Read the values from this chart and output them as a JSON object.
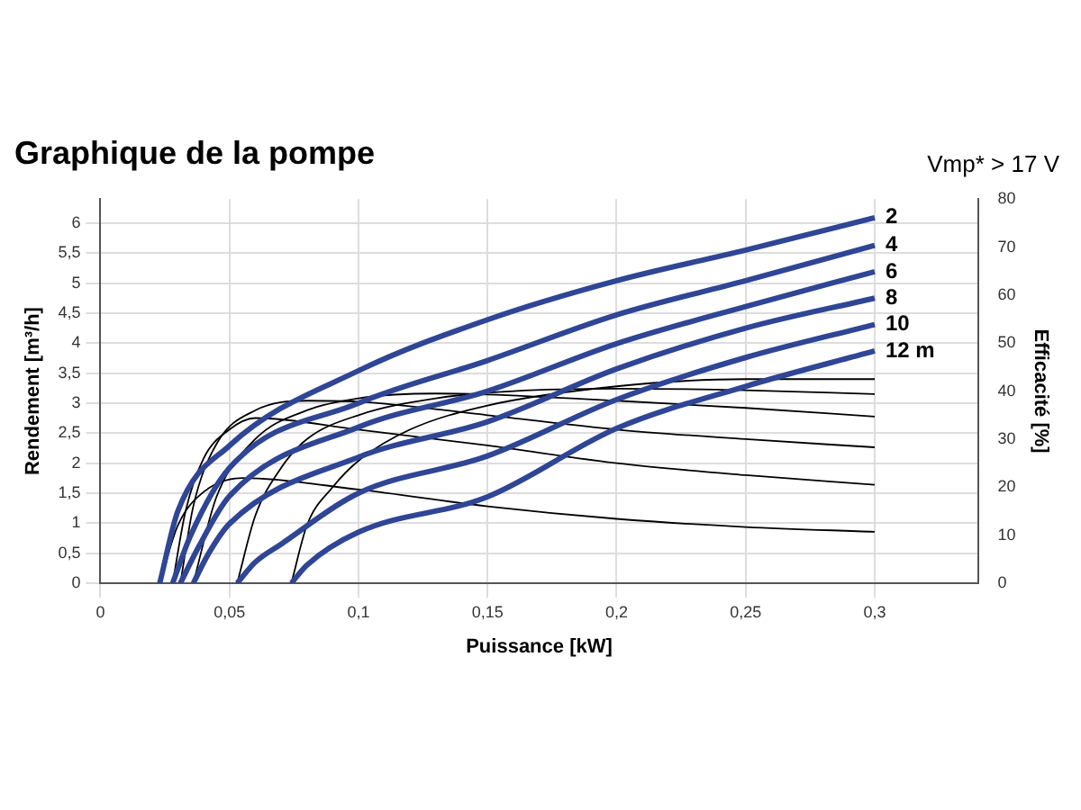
{
  "chart_data": {
    "type": "line",
    "title": "Graphique de la pompe",
    "xlabel": "Puissance [kW]",
    "ylabel": "Rendement [m³/h]",
    "y2label": "Efficacité [%]",
    "annotations": [
      "Vmp* > 17 V"
    ],
    "xlim": [
      0,
      0.34
    ],
    "xticks": [
      0,
      {
        "value": 0.05,
        "label": "0,05"
      },
      {
        "value": 0.1,
        "label": "0,1"
      },
      {
        "value": 0.15,
        "label": "0,15"
      },
      {
        "value": 0.2,
        "label": "0,2"
      },
      {
        "value": 0.25,
        "label": "0,25"
      },
      {
        "value": 0.3,
        "label": "0,3"
      }
    ],
    "ylim": [
      0,
      6.4
    ],
    "yticks": [
      0,
      {
        "value": 0.5,
        "label": "0,5"
      },
      1,
      {
        "value": 1.5,
        "label": "1,5"
      },
      2,
      {
        "value": 2.5,
        "label": "2,5"
      },
      3,
      {
        "value": 3.5,
        "label": "3,5"
      },
      4,
      {
        "value": 4.5,
        "label": "4,5"
      },
      5,
      {
        "value": 5.5,
        "label": "5,5"
      },
      6
    ],
    "y2lim": [
      0,
      80
    ],
    "y2ticks": [
      0,
      10,
      20,
      30,
      40,
      50,
      60,
      70,
      80
    ],
    "grid": true,
    "legend": false,
    "marker": "none",
    "line_style": "solid",
    "series": [
      {
        "name": "2",
        "color": "#2f4595",
        "x": [
          0.023,
          0.03,
          0.05,
          0.1,
          0.15,
          0.2,
          0.25,
          0.3
        ],
        "values": [
          0,
          1.2,
          2.29,
          3.54,
          4.39,
          5.04,
          5.55,
          6.09
        ]
      },
      {
        "name": "4",
        "color": "#2f4595",
        "x": [
          0.028,
          0.035,
          0.05,
          0.1,
          0.15,
          0.2,
          0.25,
          0.3
        ],
        "values": [
          0,
          0.8,
          1.92,
          3.0,
          3.71,
          4.47,
          5.04,
          5.63
        ]
      },
      {
        "name": "6",
        "color": "#2f4595",
        "x": [
          0.031,
          0.038,
          0.05,
          0.1,
          0.15,
          0.2,
          0.25,
          0.3
        ],
        "values": [
          0,
          0.6,
          1.45,
          2.6,
          3.2,
          3.99,
          4.61,
          5.19
        ]
      },
      {
        "name": "8",
        "color": "#2f4595",
        "x": [
          0.036,
          0.042,
          0.05,
          0.1,
          0.15,
          0.2,
          0.25,
          0.3
        ],
        "values": [
          0,
          0.5,
          0.99,
          2.1,
          2.69,
          3.57,
          4.25,
          4.75
        ]
      },
      {
        "name": "10",
        "color": "#2f4595",
        "x": [
          0.053,
          0.06,
          0.07,
          0.1,
          0.15,
          0.2,
          0.25,
          0.3
        ],
        "values": [
          0,
          0.35,
          0.65,
          1.5,
          2.12,
          3.06,
          3.76,
          4.31
        ]
      },
      {
        "name": "12 m",
        "color": "#2f4595",
        "x": [
          0.074,
          0.08,
          0.1,
          0.15,
          0.2,
          0.25,
          0.3
        ],
        "values": [
          0,
          0.3,
          0.85,
          1.44,
          2.58,
          3.28,
          3.87
        ]
      },
      {
        "color": "#000000",
        "axis": "y2",
        "x": [
          0.023,
          0.03,
          0.04,
          0.055,
          0.1,
          0.15,
          0.2,
          0.25,
          0.3
        ],
        "values": [
          0,
          12,
          19,
          21.9,
          19.5,
          16,
          13.4,
          11.7,
          10.7
        ]
      },
      {
        "color": "#000000",
        "axis": "y2",
        "x": [
          0.028,
          0.033,
          0.04,
          0.05,
          0.06,
          0.1,
          0.15,
          0.2,
          0.25,
          0.3
        ],
        "values": [
          0,
          15,
          26,
          32,
          34.4,
          32,
          28.7,
          25,
          22.5,
          20.5
        ]
      },
      {
        "color": "#000000",
        "axis": "y2",
        "x": [
          0.031,
          0.036,
          0.045,
          0.06,
          0.08,
          0.1,
          0.15,
          0.2,
          0.25,
          0.3
        ],
        "values": [
          0,
          16,
          29,
          36,
          38,
          37.8,
          35,
          32,
          30,
          28.3
        ]
      },
      {
        "color": "#000000",
        "axis": "y2",
        "x": [
          0.036,
          0.045,
          0.06,
          0.08,
          0.1,
          0.13,
          0.15,
          0.2,
          0.25,
          0.3
        ],
        "values": [
          0,
          18,
          30,
          36,
          38.5,
          39.5,
          39.3,
          38,
          36.5,
          34.7
        ]
      },
      {
        "color": "#000000",
        "axis": "y2",
        "x": [
          0.053,
          0.06,
          0.07,
          0.08,
          0.1,
          0.13,
          0.16,
          0.2,
          0.25,
          0.3
        ],
        "values": [
          0,
          14,
          24,
          30,
          35,
          38.5,
          40,
          40.5,
          40.2,
          39.4
        ]
      },
      {
        "color": "#000000",
        "axis": "y2",
        "x": [
          0.074,
          0.08,
          0.09,
          0.1,
          0.12,
          0.15,
          0.2,
          0.25,
          0.3
        ],
        "values": [
          0,
          12,
          20,
          25.5,
          32,
          37,
          41,
          42.5,
          42.5
        ]
      }
    ]
  }
}
